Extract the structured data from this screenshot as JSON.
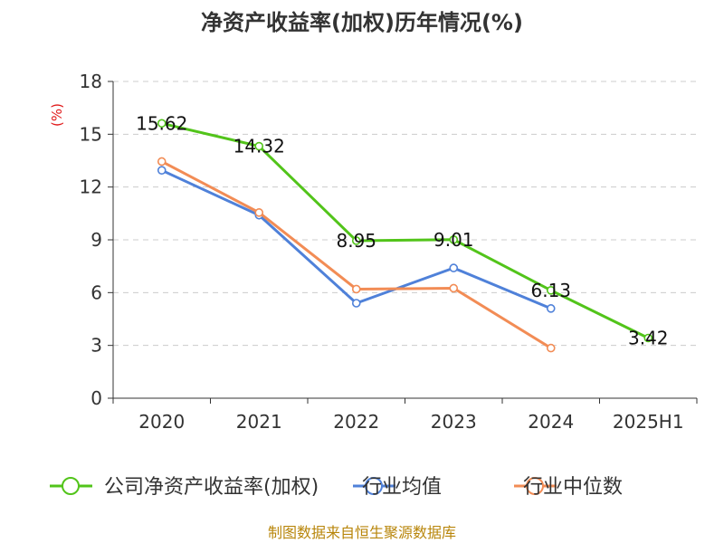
{
  "chart_data": {
    "type": "line",
    "title": "净资产收益率(加权)历年情况(%)",
    "ylabel": "(%)",
    "xlabel": "",
    "categories": [
      "2020",
      "2021",
      "2022",
      "2023",
      "2024",
      "2025H1"
    ],
    "ylim": [
      0,
      18
    ],
    "yticks": [
      0,
      3,
      6,
      9,
      12,
      15,
      18
    ],
    "grid": true,
    "legend_position": "bottom",
    "series": [
      {
        "name": "公司净资产收益率(加权)",
        "color": "#52c41a",
        "values": [
          15.62,
          14.32,
          8.95,
          9.01,
          6.13,
          3.42
        ],
        "labels": [
          "15.62",
          "14.32",
          "8.95",
          "9.01",
          "6.13",
          "3.42"
        ]
      },
      {
        "name": "行业均值",
        "color": "#4f81d9",
        "values": [
          12.95,
          10.4,
          5.4,
          7.4,
          5.1,
          null
        ]
      },
      {
        "name": "行业中位数",
        "color": "#f28c55",
        "values": [
          13.45,
          10.55,
          6.2,
          6.25,
          2.85,
          null
        ]
      }
    ]
  },
  "footer": "制图数据来自恒生聚源数据库"
}
